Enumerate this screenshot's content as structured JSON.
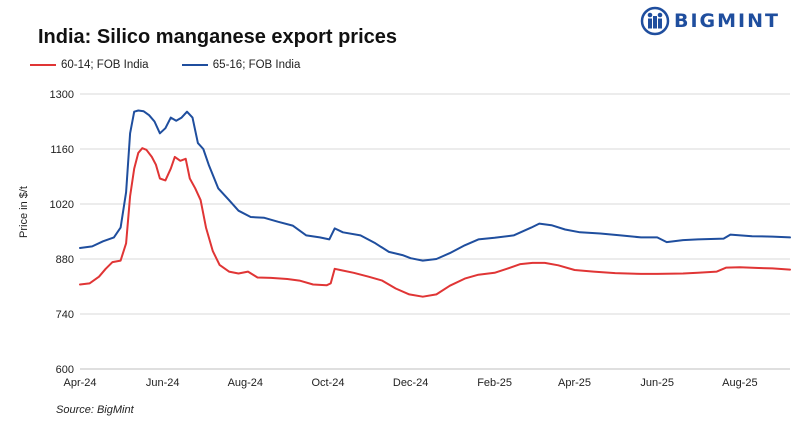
{
  "brand": {
    "name": "BIGMINT",
    "color": "#1f4e9e"
  },
  "source": "Source: BigMint",
  "chart_data": {
    "type": "line",
    "title": "India: Silico manganese export prices",
    "xlabel": "",
    "ylabel": "Price in $/t",
    "ylim": [
      600,
      1300
    ],
    "yticks": [
      600,
      740,
      880,
      1020,
      1160,
      1300
    ],
    "grid": true,
    "legend_position": "top-left",
    "xticks": [
      "Apr-24",
      "Jun-24",
      "Aug-24",
      "Oct-24",
      "Dec-24",
      "Feb-25",
      "Apr-25",
      "Jun-25",
      "Aug-25"
    ],
    "x_range": [
      "2024-04-01",
      "2025-09-07"
    ],
    "series": [
      {
        "name": "60-14; FOB India",
        "color": "#e03535",
        "points": [
          [
            "2024-04-01",
            815
          ],
          [
            "2024-04-08",
            818
          ],
          [
            "2024-04-15",
            835
          ],
          [
            "2024-04-20",
            855
          ],
          [
            "2024-04-25",
            872
          ],
          [
            "2024-05-01",
            876
          ],
          [
            "2024-05-05",
            920
          ],
          [
            "2024-05-08",
            1040
          ],
          [
            "2024-05-11",
            1110
          ],
          [
            "2024-05-14",
            1150
          ],
          [
            "2024-05-17",
            1162
          ],
          [
            "2024-05-20",
            1158
          ],
          [
            "2024-05-24",
            1140
          ],
          [
            "2024-05-27",
            1120
          ],
          [
            "2024-05-30",
            1085
          ],
          [
            "2024-06-03",
            1080
          ],
          [
            "2024-06-07",
            1110
          ],
          [
            "2024-06-10",
            1140
          ],
          [
            "2024-06-14",
            1130
          ],
          [
            "2024-06-18",
            1135
          ],
          [
            "2024-06-21",
            1085
          ],
          [
            "2024-06-25",
            1060
          ],
          [
            "2024-06-29",
            1030
          ],
          [
            "2024-07-03",
            960
          ],
          [
            "2024-07-08",
            900
          ],
          [
            "2024-07-13",
            865
          ],
          [
            "2024-07-20",
            848
          ],
          [
            "2024-07-27",
            843
          ],
          [
            "2024-08-03",
            848
          ],
          [
            "2024-08-10",
            833
          ],
          [
            "2024-08-20",
            832
          ],
          [
            "2024-09-01",
            829
          ],
          [
            "2024-09-10",
            825
          ],
          [
            "2024-09-20",
            815
          ],
          [
            "2024-09-30",
            813
          ],
          [
            "2024-10-03",
            818
          ],
          [
            "2024-10-06",
            855
          ],
          [
            "2024-10-10",
            852
          ],
          [
            "2024-10-20",
            845
          ],
          [
            "2024-10-31",
            835
          ],
          [
            "2024-11-10",
            825
          ],
          [
            "2024-11-20",
            805
          ],
          [
            "2024-11-30",
            790
          ],
          [
            "2024-12-10",
            784
          ],
          [
            "2024-12-20",
            790
          ],
          [
            "2024-12-30",
            812
          ],
          [
            "2025-01-10",
            830
          ],
          [
            "2025-01-20",
            840
          ],
          [
            "2025-02-01",
            845
          ],
          [
            "2025-02-10",
            855
          ],
          [
            "2025-02-20",
            867
          ],
          [
            "2025-03-01",
            870
          ],
          [
            "2025-03-10",
            870
          ],
          [
            "2025-03-20",
            864
          ],
          [
            "2025-04-01",
            852
          ],
          [
            "2025-04-15",
            848
          ],
          [
            "2025-05-01",
            844
          ],
          [
            "2025-05-20",
            842
          ],
          [
            "2025-06-01",
            842
          ],
          [
            "2025-06-20",
            843
          ],
          [
            "2025-07-01",
            845
          ],
          [
            "2025-07-15",
            848
          ],
          [
            "2025-07-22",
            858
          ],
          [
            "2025-08-01",
            859
          ],
          [
            "2025-08-15",
            857
          ],
          [
            "2025-08-25",
            856
          ],
          [
            "2025-09-07",
            853
          ]
        ]
      },
      {
        "name": "65-16; FOB India",
        "color": "#1f4e9e",
        "points": [
          [
            "2024-04-01",
            908
          ],
          [
            "2024-04-10",
            912
          ],
          [
            "2024-04-18",
            925
          ],
          [
            "2024-04-26",
            935
          ],
          [
            "2024-05-01",
            960
          ],
          [
            "2024-05-05",
            1050
          ],
          [
            "2024-05-08",
            1200
          ],
          [
            "2024-05-11",
            1255
          ],
          [
            "2024-05-14",
            1258
          ],
          [
            "2024-05-18",
            1256
          ],
          [
            "2024-05-22",
            1246
          ],
          [
            "2024-05-26",
            1230
          ],
          [
            "2024-05-30",
            1200
          ],
          [
            "2024-06-03",
            1213
          ],
          [
            "2024-06-07",
            1240
          ],
          [
            "2024-06-11",
            1232
          ],
          [
            "2024-06-15",
            1240
          ],
          [
            "2024-06-19",
            1255
          ],
          [
            "2024-06-23",
            1240
          ],
          [
            "2024-06-27",
            1175
          ],
          [
            "2024-07-01",
            1160
          ],
          [
            "2024-07-05",
            1120
          ],
          [
            "2024-07-12",
            1060
          ],
          [
            "2024-07-20",
            1030
          ],
          [
            "2024-07-27",
            1003
          ],
          [
            "2024-08-05",
            987
          ],
          [
            "2024-08-15",
            985
          ],
          [
            "2024-08-25",
            975
          ],
          [
            "2024-09-05",
            965
          ],
          [
            "2024-09-15",
            940
          ],
          [
            "2024-09-25",
            935
          ],
          [
            "2024-10-02",
            930
          ],
          [
            "2024-10-06",
            958
          ],
          [
            "2024-10-12",
            948
          ],
          [
            "2024-10-25",
            940
          ],
          [
            "2024-11-05",
            920
          ],
          [
            "2024-11-15",
            898
          ],
          [
            "2024-11-25",
            890
          ],
          [
            "2024-12-01",
            882
          ],
          [
            "2024-12-10",
            876
          ],
          [
            "2024-12-20",
            880
          ],
          [
            "2024-12-30",
            895
          ],
          [
            "2025-01-10",
            915
          ],
          [
            "2025-01-20",
            930
          ],
          [
            "2025-02-01",
            934
          ],
          [
            "2025-02-15",
            940
          ],
          [
            "2025-02-28",
            960
          ],
          [
            "2025-03-06",
            970
          ],
          [
            "2025-03-15",
            966
          ],
          [
            "2025-03-25",
            955
          ],
          [
            "2025-04-05",
            948
          ],
          [
            "2025-04-20",
            945
          ],
          [
            "2025-05-05",
            940
          ],
          [
            "2025-05-20",
            935
          ],
          [
            "2025-06-01",
            935
          ],
          [
            "2025-06-08",
            923
          ],
          [
            "2025-06-20",
            928
          ],
          [
            "2025-07-01",
            930
          ],
          [
            "2025-07-20",
            932
          ],
          [
            "2025-07-25",
            942
          ],
          [
            "2025-08-10",
            938
          ],
          [
            "2025-08-25",
            937
          ],
          [
            "2025-09-07",
            935
          ]
        ]
      }
    ]
  }
}
